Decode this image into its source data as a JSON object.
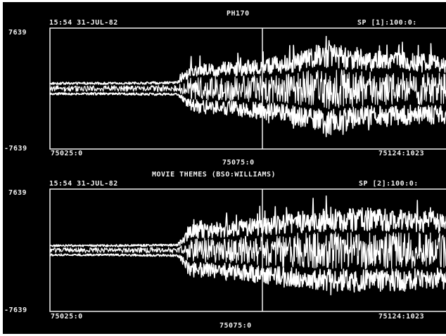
{
  "colors": {
    "background": "#000000",
    "trace": "#ffffff",
    "frame": "#f2f2f2"
  },
  "panels": [
    {
      "title": "PH170",
      "timestamp": "15:54 31-JUL-82",
      "channel": "SP [1]:100:0:",
      "y_top_label": "7639",
      "y_bottom_label": "-7639",
      "x_left_label": "75025:0",
      "x_mid_label": "75075:0",
      "x_right_label": "75124:1023",
      "chart_data": {
        "type": "line",
        "x_range": [
          75025,
          75124
        ],
        "y_range": [
          -7639,
          7639
        ],
        "cursor_x": 75075,
        "series": [
          {
            "amplitude_envelope": [
              [
                75025,
                800
              ],
              [
                75040,
                800
              ],
              [
                75055,
                900
              ],
              [
                75058,
                3000
              ],
              [
                75070,
                3600
              ],
              [
                75080,
                4200
              ],
              [
                75090,
                5900
              ],
              [
                75100,
                4800
              ],
              [
                75110,
                4600
              ],
              [
                75124,
                4300
              ]
            ]
          }
        ]
      }
    },
    {
      "title": "MOVIE THEMES (BSO:WILLIAMS)",
      "timestamp": "15:54 31-JUL-82",
      "channel": "SP [2]:100:0:",
      "y_top_label": "7639",
      "y_bottom_label": "-7639",
      "x_left_label": "75025:0",
      "x_mid_label": "75075:0",
      "x_right_label": "75124:1023",
      "chart_data": {
        "type": "line",
        "x_range": [
          75025,
          75124
        ],
        "y_range": [
          -7639,
          7639
        ],
        "cursor_x": 75075,
        "series": [
          {
            "amplitude_envelope": [
              [
                75025,
                700
              ],
              [
                75040,
                700
              ],
              [
                75055,
                800
              ],
              [
                75058,
                3200
              ],
              [
                75070,
                3800
              ],
              [
                75080,
                4600
              ],
              [
                75090,
                5200
              ],
              [
                75100,
                5300
              ],
              [
                75110,
                5000
              ],
              [
                75124,
                4700
              ]
            ]
          }
        ]
      }
    }
  ]
}
